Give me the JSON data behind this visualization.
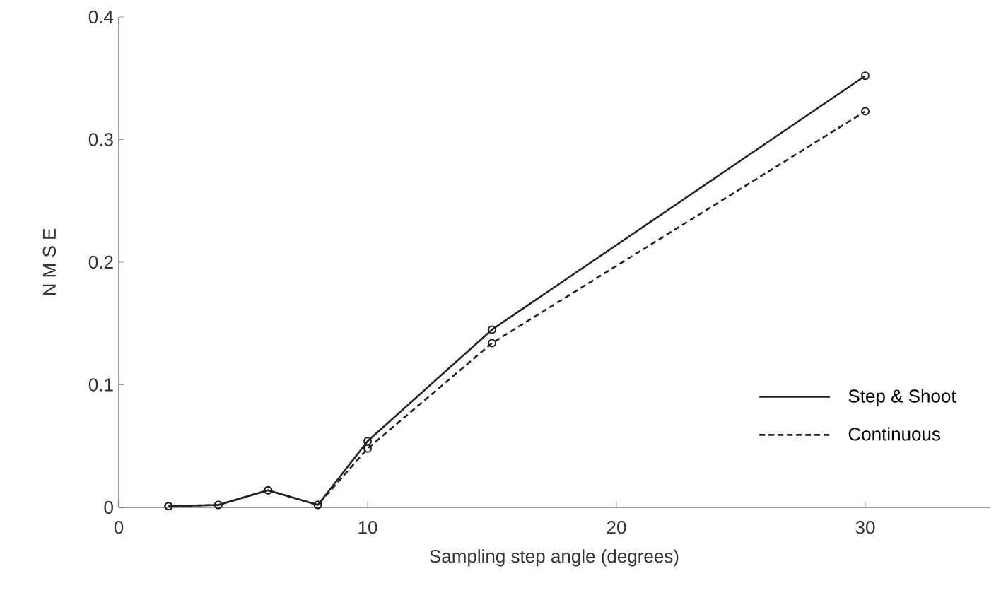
{
  "chart_data": {
    "type": "line",
    "xlabel": "Sampling step angle (degrees)",
    "ylabel": "N M S E",
    "x": [
      2,
      4,
      6,
      8,
      10,
      15,
      30
    ],
    "series": [
      {
        "name": "Step & Shoot",
        "color": "#222222",
        "line_style": "solid",
        "values": [
          0.001,
          0.002,
          0.014,
          0.002,
          0.054,
          0.145,
          0.352
        ]
      },
      {
        "name": "Continuous",
        "color": "#222222",
        "line_style": "dashed",
        "values": [
          0.001,
          0.002,
          0.014,
          0.002,
          0.048,
          0.134,
          0.323
        ]
      }
    ],
    "xlim": [
      0,
      35
    ],
    "xticks": [
      0,
      10,
      20,
      30
    ],
    "ylim": [
      0,
      0.4
    ],
    "yticks": [
      0,
      0.1,
      0.2,
      0.3,
      0.4
    ],
    "marker": "circle",
    "legend": "bottom right",
    "grid": false
  }
}
